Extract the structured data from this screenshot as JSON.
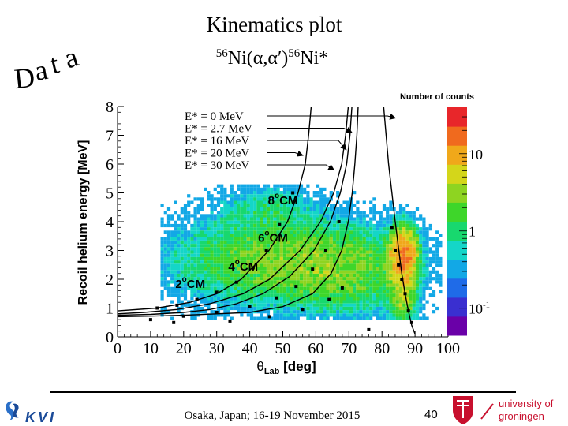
{
  "slide": {
    "title": "Kinematics plot",
    "subtitle_mass_left": "56",
    "subtitle_reaction": "Ni(α,α′)",
    "subtitle_mass_right": "56",
    "subtitle_product": "Ni*",
    "data_word": "Data",
    "footer": "Osaka, Japan; 16-19 November 2015",
    "page_number": "40"
  },
  "logos": {
    "kvi": "KVI",
    "rug_line1": "university of",
    "rug_line2": "groningen"
  },
  "colors": {
    "palette": [
      "#6a00a8",
      "#3a2fd0",
      "#1f6be8",
      "#12a8e6",
      "#14d6c8",
      "#18d86e",
      "#3ed62a",
      "#8ed421",
      "#d4d61a",
      "#f0a81a",
      "#f06a1e",
      "#e8262a"
    ],
    "curve": "#000000",
    "arrow": "#000000"
  },
  "chart_data": {
    "type": "heatmap",
    "xlabel": "θ",
    "xlabel_sub": "Lab",
    "xlabel_unit": " [deg]",
    "ylabel": "Recoil helium energy [MeV]",
    "xlim": [
      0,
      100
    ],
    "ylim": [
      0,
      8
    ],
    "x_ticks": [
      0,
      10,
      20,
      30,
      40,
      50,
      60,
      70,
      80,
      90,
      100
    ],
    "y_ticks": [
      0,
      1,
      2,
      3,
      4,
      5,
      6,
      7,
      8
    ],
    "colorbar": {
      "title": "Number of counts",
      "scale": "log",
      "tick_labels": [
        {
          "text": "10",
          "value": 10
        },
        {
          "text": "1",
          "value": 1
        },
        {
          "text": "10-1",
          "base": "10",
          "exp": "-1",
          "value": 0.1
        }
      ]
    },
    "density_clusters": [
      {
        "x": 47,
        "y": 2.7,
        "sx": 22,
        "sy": 1.05,
        "w": 1.0
      },
      {
        "x": 70,
        "y": 2.2,
        "sx": 13,
        "sy": 1.0,
        "w": 0.55
      },
      {
        "x": 86,
        "y": 3.0,
        "sx": 2.6,
        "sy": 0.55,
        "w": 2.6
      },
      {
        "x": 86,
        "y": 1.9,
        "sx": 2.6,
        "sy": 1.0,
        "w": 1.3
      },
      {
        "x": 45,
        "y": 4.7,
        "sx": 10,
        "sy": 0.5,
        "w": 0.35
      }
    ],
    "density_bounds": {
      "x": [
        13,
        98
      ],
      "y": [
        0.6,
        5.3
      ]
    },
    "curves": [
      {
        "label": "E* = 0 MeV",
        "points": [
          [
            80.5,
            8.0
          ],
          [
            82,
            6.0
          ],
          [
            83,
            5.0
          ],
          [
            84,
            4.0
          ],
          [
            85,
            3.1
          ],
          [
            86,
            2.2
          ],
          [
            87,
            1.5
          ],
          [
            88,
            0.9
          ],
          [
            89,
            0.4
          ],
          [
            90,
            0.1
          ]
        ]
      },
      {
        "label": "E* = 2.7 MeV",
        "points": [
          [
            72.8,
            8.0
          ],
          [
            72.4,
            7.0
          ],
          [
            71.8,
            6.0
          ],
          [
            71.0,
            5.0
          ],
          [
            69.8,
            4.0
          ],
          [
            67.8,
            3.0
          ],
          [
            64.6,
            2.2
          ],
          [
            59,
            1.5
          ],
          [
            50,
            1.05
          ],
          [
            40,
            0.85
          ],
          [
            30,
            0.8
          ],
          [
            20,
            0.75
          ],
          [
            10,
            0.72
          ],
          [
            0,
            0.7
          ]
        ]
      },
      {
        "label": "E* = 16 MeV",
        "points": [
          [
            70.9,
            8.0
          ],
          [
            70.3,
            7.0
          ],
          [
            69.3,
            6.0
          ],
          [
            67.4,
            5.0
          ],
          [
            64.4,
            4.0
          ],
          [
            59.4,
            3.0
          ],
          [
            52.1,
            2.1
          ],
          [
            44,
            1.5
          ],
          [
            36,
            1.15
          ],
          [
            28,
            0.95
          ],
          [
            20,
            0.85
          ],
          [
            10,
            0.78
          ],
          [
            0,
            0.75
          ]
        ]
      },
      {
        "label": "E* = 20 MeV",
        "points": [
          [
            58.6,
            8.0
          ],
          [
            57.8,
            7.0
          ],
          [
            56.8,
            6.0
          ],
          [
            54.6,
            5.0
          ],
          [
            51.4,
            4.0
          ],
          [
            45.8,
            3.0
          ],
          [
            37.4,
            2.0
          ],
          [
            30,
            1.5
          ],
          [
            22,
            1.2
          ],
          [
            12,
            1.0
          ],
          [
            0,
            0.9
          ]
        ]
      },
      {
        "label": "E* = 30 MeV",
        "points": [
          [
            69.8,
            8.0
          ],
          [
            69.0,
            7.0
          ],
          [
            67.8,
            6.0
          ],
          [
            65.4,
            5.0
          ],
          [
            61.4,
            4.0
          ],
          [
            55.2,
            3.0
          ],
          [
            46.0,
            2.0
          ],
          [
            38,
            1.5
          ],
          [
            28,
            1.15
          ],
          [
            18,
            0.95
          ],
          [
            8,
            0.85
          ],
          [
            0,
            0.8
          ]
        ]
      }
    ],
    "curve_markers": [
      [
        12,
        1.0
      ],
      [
        18,
        1.1
      ],
      [
        24,
        1.3
      ],
      [
        30,
        1.55
      ],
      [
        36,
        1.9
      ],
      [
        41,
        2.4
      ],
      [
        45,
        3.0
      ],
      [
        49,
        3.9
      ],
      [
        53,
        5.0
      ],
      [
        10,
        0.6
      ],
      [
        20,
        0.72
      ],
      [
        30,
        0.85
      ],
      [
        40,
        1.05
      ],
      [
        48,
        1.35
      ],
      [
        54,
        1.75
      ],
      [
        59,
        2.35
      ],
      [
        63,
        3.0
      ],
      [
        67,
        4.0
      ],
      [
        17,
        0.5
      ],
      [
        34,
        0.55
      ],
      [
        46,
        0.7
      ],
      [
        56,
        0.95
      ],
      [
        64,
        1.3
      ],
      [
        68,
        1.7
      ],
      [
        76,
        0.25
      ],
      [
        83,
        3.8
      ],
      [
        84,
        3.0
      ],
      [
        85,
        2.5
      ],
      [
        86,
        2.0
      ],
      [
        87,
        1.5
      ],
      [
        88,
        0.9
      ],
      [
        89,
        0.5
      ]
    ],
    "cm_labels": [
      {
        "deg": "8",
        "unit": "CM",
        "x": 45.5,
        "y": 4.6
      },
      {
        "deg": "6",
        "unit": "CM",
        "x": 42.5,
        "y": 3.3
      },
      {
        "deg": "4",
        "unit": "CM",
        "x": 33.5,
        "y": 2.3
      },
      {
        "deg": "2",
        "unit": "CM",
        "x": 17.5,
        "y": 1.7
      }
    ],
    "legend_entries": [
      {
        "text": "E* = 0 MeV",
        "curve": 0,
        "target": [
          85.5,
          7.6
        ]
      },
      {
        "text": "E* = 2.7 MeV",
        "curve": 1,
        "target": [
          72.3,
          7.1
        ]
      },
      {
        "text": "E* = 16 MeV",
        "curve": 2,
        "target": [
          70.6,
          6.5
        ]
      },
      {
        "text": "E* = 20 MeV",
        "curve": 3,
        "target": [
          57.5,
          6.3
        ]
      },
      {
        "text": "E* = 30 MeV",
        "curve": 4,
        "target": [
          66.9,
          5.8
        ]
      }
    ]
  }
}
